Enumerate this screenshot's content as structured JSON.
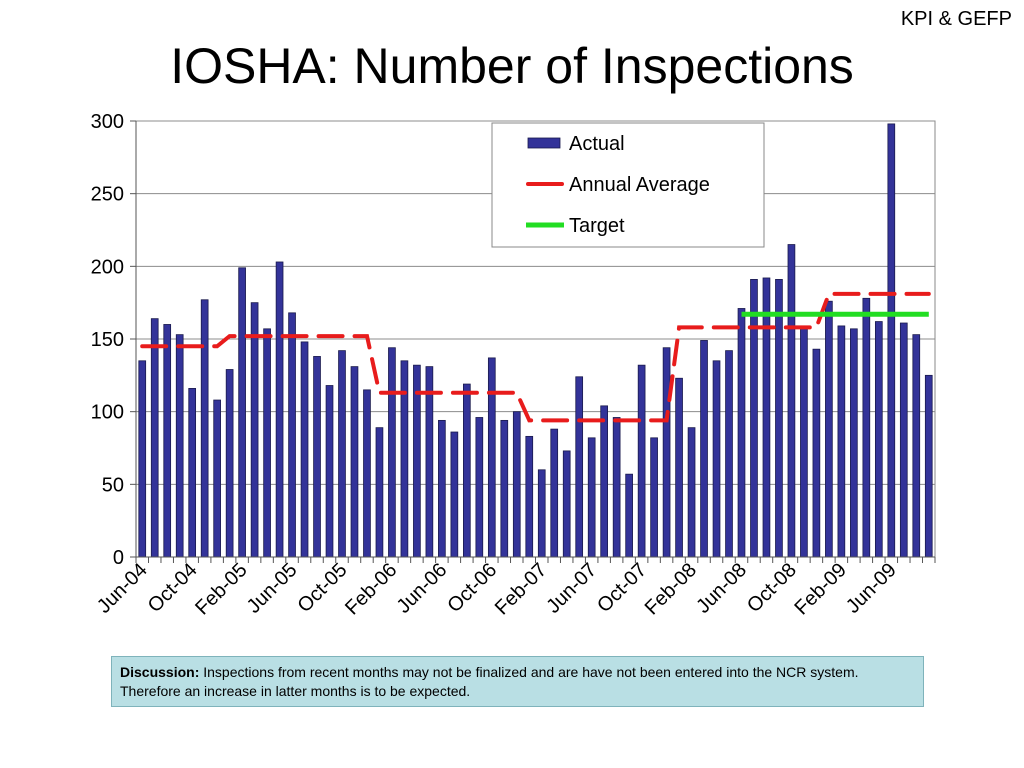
{
  "header": {
    "corner_label": "KPI & GEFP",
    "title": "IOSHA: Number of Inspections"
  },
  "discussion": {
    "label": "Discussion:",
    "text": " Inspections from recent months may not be finalized and are have not been entered into the NCR system. Therefore an increase in latter months is to be expected."
  },
  "chart_data": {
    "type": "bar",
    "ylim": [
      0,
      300
    ],
    "yticks": [
      0,
      50,
      100,
      150,
      200,
      250,
      300
    ],
    "grid": true,
    "legend_position": "top-center",
    "x_start": "Jun-04",
    "xtick_labels": [
      "Jun-04",
      "Oct-04",
      "Feb-05",
      "Jun-05",
      "Oct-05",
      "Feb-06",
      "Jun-06",
      "Oct-06",
      "Feb-07",
      "Jun-07",
      "Oct-07",
      "Feb-08",
      "Jun-08",
      "Oct-08",
      "Feb-09",
      "Jun-09"
    ],
    "colors": {
      "actual": "#333399",
      "annual_average": "#e81c1c",
      "target": "#22dd22"
    },
    "series": [
      {
        "name": "Actual",
        "type": "bar",
        "values": [
          135,
          164,
          160,
          153,
          116,
          177,
          108,
          129,
          199,
          175,
          157,
          203,
          168,
          148,
          138,
          118,
          142,
          131,
          115,
          89,
          144,
          135,
          132,
          131,
          94,
          86,
          119,
          96,
          137,
          94,
          100,
          83,
          60,
          88,
          73,
          124,
          82,
          104,
          96,
          57,
          132,
          82,
          144,
          123,
          89,
          149,
          135,
          142,
          171,
          191,
          192,
          191,
          215,
          158,
          143,
          176,
          159,
          157,
          178,
          162,
          298,
          161,
          153,
          125
        ]
      },
      {
        "name": "Annual Average",
        "type": "line",
        "dashed": true,
        "values": [
          145,
          145,
          145,
          145,
          145,
          145,
          145,
          152,
          152,
          152,
          152,
          152,
          152,
          152,
          152,
          152,
          152,
          152,
          152,
          113,
          113,
          113,
          113,
          113,
          113,
          113,
          113,
          113,
          113,
          113,
          113,
          94,
          94,
          94,
          94,
          94,
          94,
          94,
          94,
          94,
          94,
          94,
          94,
          158,
          158,
          158,
          158,
          158,
          158,
          158,
          158,
          158,
          158,
          158,
          158,
          181,
          181,
          181,
          181,
          181,
          181,
          181,
          181,
          181
        ]
      },
      {
        "name": "Target",
        "type": "line",
        "start_index": 48,
        "values": [
          167,
          167,
          167,
          167,
          167,
          167,
          167,
          167,
          167,
          167,
          167,
          167,
          167,
          167,
          167,
          167
        ]
      }
    ]
  }
}
